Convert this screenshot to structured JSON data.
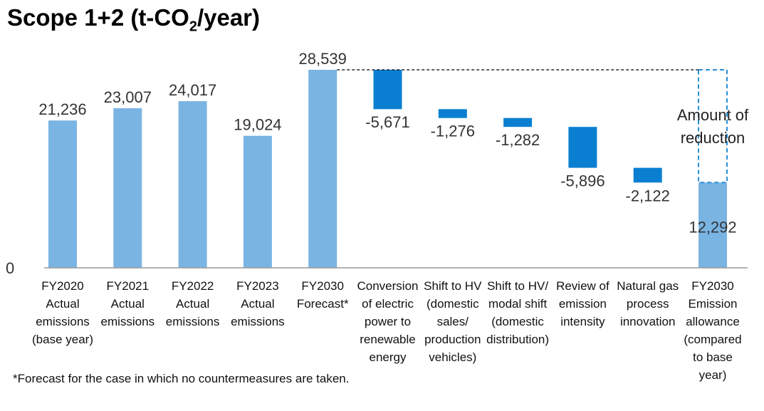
{
  "title": {
    "prefix": "Scope 1+2 (t-CO",
    "sub": "2",
    "suffix": "/year)"
  },
  "footnote": "*Forecast for the case in which no countermeasures are taken.",
  "colors": {
    "bar": "#7ab4e3",
    "reduction": "#0a7fd1",
    "axis": "#999999",
    "outline": "#2a8fd6"
  },
  "chart_data": {
    "type": "bar",
    "subtype": "waterfall",
    "ylim": [
      0,
      28539
    ],
    "y_ticks": [
      "0"
    ],
    "grid": false,
    "categories": [
      {
        "lines": [
          "FY2020",
          "Actual",
          "emissions",
          "(base year)"
        ],
        "kind": "bar",
        "value": 21236,
        "label": "21,236"
      },
      {
        "lines": [
          "FY2021",
          "Actual",
          "emissions"
        ],
        "kind": "bar",
        "value": 23007,
        "label": "23,007"
      },
      {
        "lines": [
          "FY2022",
          "Actual",
          "emissions"
        ],
        "kind": "bar",
        "value": 24017,
        "label": "24,017"
      },
      {
        "lines": [
          "FY2023",
          "Actual",
          "emissions"
        ],
        "kind": "bar",
        "value": 19024,
        "label": "19,024"
      },
      {
        "lines": [
          "FY2030",
          "Forecast*"
        ],
        "kind": "bar",
        "value": 28539,
        "label": "28,539"
      },
      {
        "lines": [
          "Conversion",
          "of electric",
          "power to",
          "renewable",
          "energy"
        ],
        "kind": "reduction",
        "value": -5671,
        "label": "-5,671"
      },
      {
        "lines": [
          "Shift to HV",
          "(domestic",
          "sales/",
          "production",
          "vehicles)"
        ],
        "kind": "reduction",
        "value": -1276,
        "label": "-1,276"
      },
      {
        "lines": [
          "Shift to HV/",
          "modal shift",
          "(domestic",
          "distribution)"
        ],
        "kind": "reduction",
        "value": -1282,
        "label": "-1,282"
      },
      {
        "lines": [
          "Review of",
          "emission",
          "intensity"
        ],
        "kind": "reduction",
        "value": -5896,
        "label": "-5,896"
      },
      {
        "lines": [
          "Natural gas",
          "process",
          "innovation"
        ],
        "kind": "reduction",
        "value": -2122,
        "label": "-2,122"
      },
      {
        "lines": [
          "FY2030",
          "Emission",
          "allowance",
          "(compared",
          "to base",
          "year)"
        ],
        "kind": "bar",
        "value": 12292,
        "label": "12,292"
      }
    ],
    "annotation": {
      "lines": [
        "Amount of",
        "reduction"
      ]
    }
  }
}
